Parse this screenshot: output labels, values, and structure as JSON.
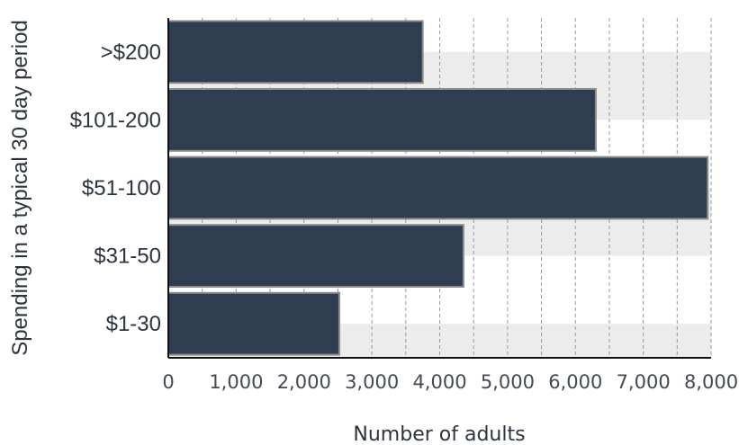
{
  "chart_data": {
    "type": "bar",
    "orientation": "horizontal",
    "categories": [
      ">$200",
      "$101-200",
      "$51-100",
      "$31-50",
      "$1-30"
    ],
    "values": [
      3750,
      6300,
      7950,
      4350,
      2520
    ],
    "xlabel": "Number of adults",
    "ylabel": "Spending in a typical 30 day period",
    "xlim": [
      0,
      8000
    ],
    "xticks": [
      0,
      1000,
      2000,
      3000,
      4000,
      5000,
      6000,
      7000,
      8000
    ],
    "xtick_labels": [
      "0",
      "1,000",
      "2,000",
      "3,000",
      "4,000",
      "5,000",
      "6,000",
      "7,000",
      "8,000"
    ],
    "grid": "vertical dashed",
    "bar_color": "#2e3e50",
    "bar_edge_color": "#8c8c8c",
    "band_color": "#ececec"
  }
}
